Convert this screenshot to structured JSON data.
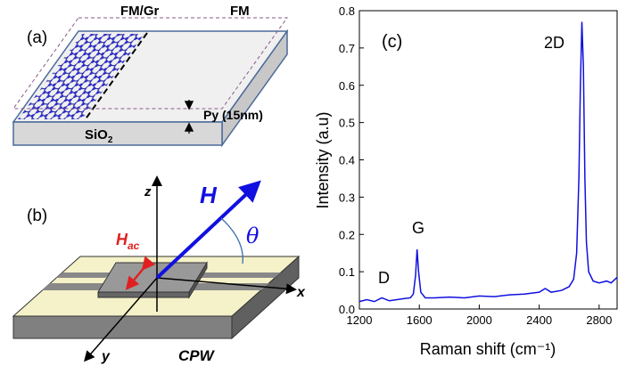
{
  "panel_a": {
    "label": "(a)",
    "left_region": "FM/Gr",
    "right_region": "FM",
    "thickness": "Py (15nm)",
    "substrate": "SiO",
    "substrate_subscript": "2"
  },
  "panel_b": {
    "label": "(b)",
    "z_axis": "z",
    "x_axis": "x",
    "y_axis": "y",
    "field": "H",
    "angle": "θ",
    "ac_field": "H",
    "ac_field_subscript": "ac",
    "waveguide": "CPW"
  },
  "chart_data": {
    "type": "line",
    "annotations": [
      "(c)",
      "D",
      "G",
      "2D"
    ],
    "x_label": "Raman shift (cm⁻¹)",
    "y_label": "Intensity (a.u)",
    "color": "#1010e0",
    "x": [
      1200,
      1250,
      1300,
      1350,
      1400,
      1450,
      1500,
      1540,
      1560,
      1575,
      1585,
      1595,
      1610,
      1640,
      1700,
      1800,
      1900,
      2000,
      2100,
      2200,
      2300,
      2400,
      2440,
      2480,
      2550,
      2600,
      2630,
      2650,
      2665,
      2675,
      2685,
      2695,
      2705,
      2715,
      2730,
      2760,
      2800,
      2850,
      2880,
      2920
    ],
    "values": [
      0.02,
      0.025,
      0.02,
      0.03,
      0.022,
      0.025,
      0.028,
      0.03,
      0.04,
      0.09,
      0.16,
      0.1,
      0.045,
      0.03,
      0.03,
      0.032,
      0.03,
      0.035,
      0.033,
      0.038,
      0.04,
      0.045,
      0.055,
      0.045,
      0.05,
      0.06,
      0.08,
      0.15,
      0.35,
      0.6,
      0.77,
      0.65,
      0.35,
      0.18,
      0.1,
      0.075,
      0.07,
      0.075,
      0.07,
      0.085
    ],
    "xlim": [
      1200,
      2920
    ],
    "xticks": [
      1200,
      1600,
      2000,
      2400,
      2800
    ],
    "ylim": [
      0,
      0.8
    ],
    "yticks": [
      {
        "value": 0,
        "label": "0.0"
      },
      0.1,
      0.2,
      0.3,
      0.4,
      0.5,
      0.6,
      0.7,
      0.8
    ]
  }
}
